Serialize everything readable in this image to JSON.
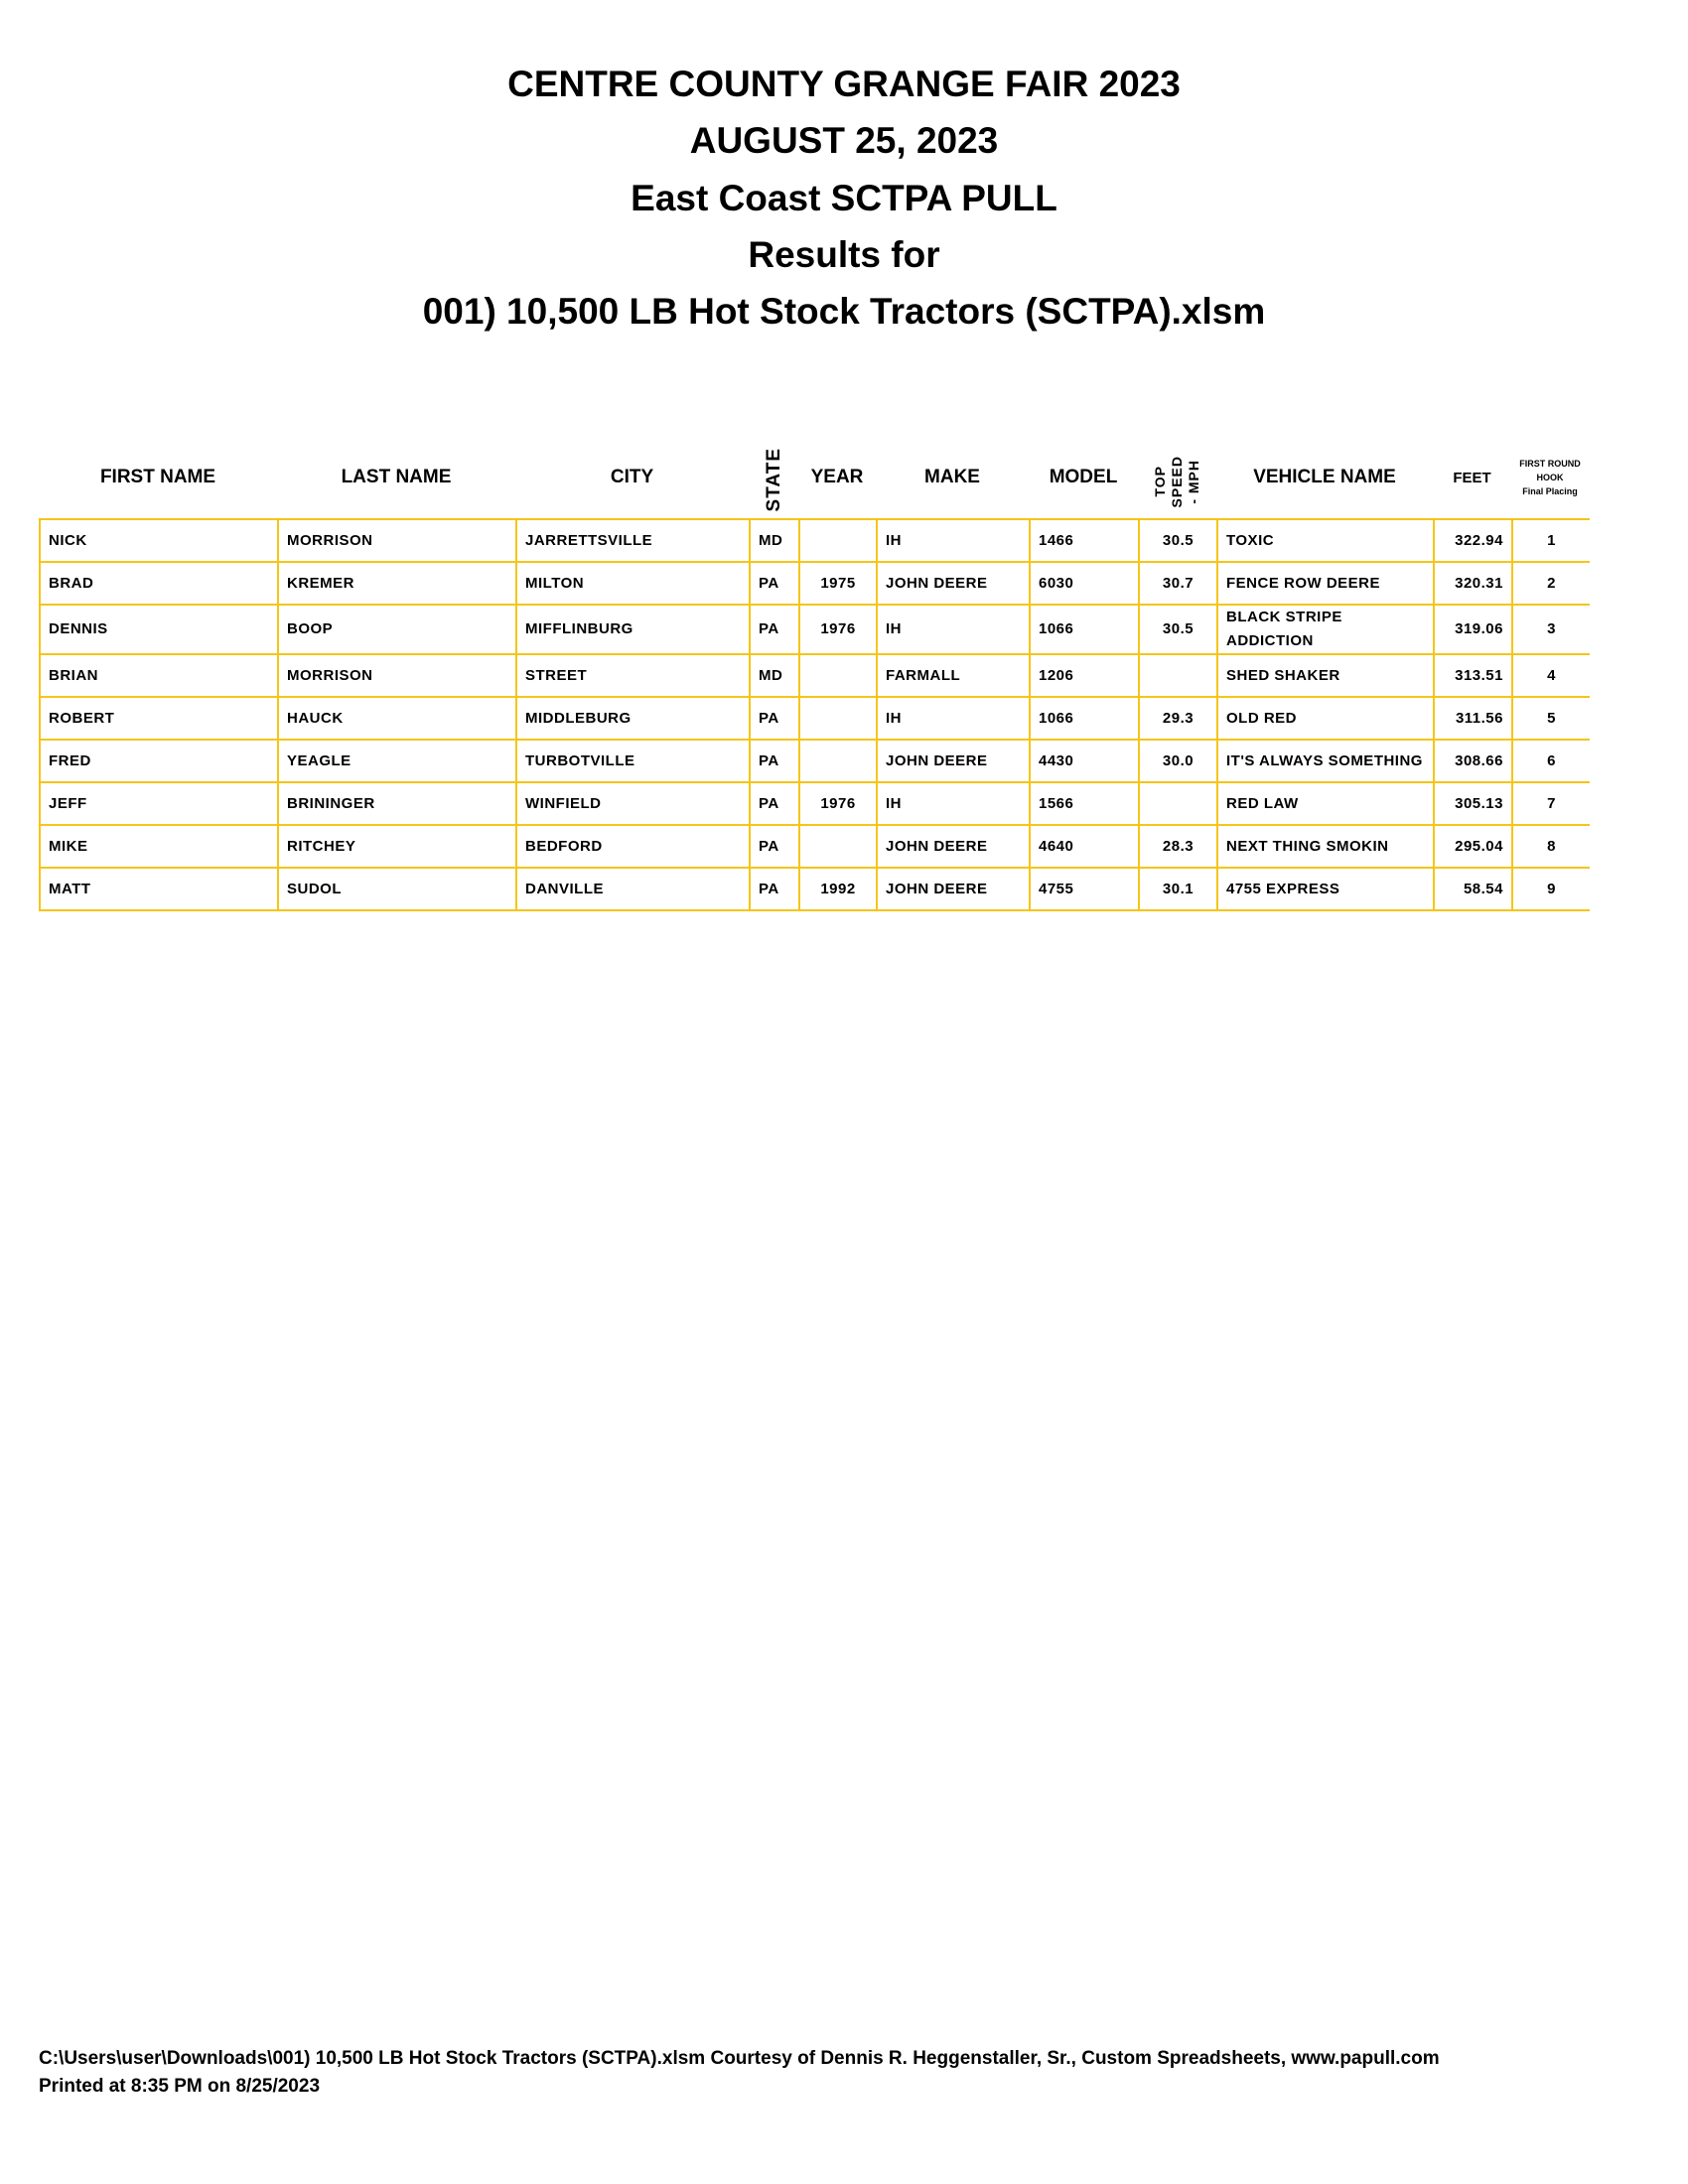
{
  "titles": [
    "CENTRE COUNTY GRANGE FAIR 2023",
    "AUGUST 25, 2023",
    "East Coast SCTPA PULL",
    "Results for",
    "001) 10,500 LB Hot Stock Tractors (SCTPA).xlsm"
  ],
  "columns": {
    "first": "FIRST NAME",
    "last": "LAST NAME",
    "city": "CITY",
    "state": "STATE",
    "year": "YEAR",
    "make": "MAKE",
    "model": "MODEL",
    "speed_1": "TOP",
    "speed_2": "SPEED",
    "speed_3": "- MPH",
    "vehicle": "VEHICLE NAME",
    "feet": "FEET",
    "place_1": "FIRST ROUND",
    "place_2": "HOOK",
    "place_3": "Final Placing"
  },
  "rows": [
    {
      "first": "NICK",
      "last": "MORRISON",
      "city": "JARRETTSVILLE",
      "state": "MD",
      "year": "",
      "make": "IH",
      "model": "1466",
      "speed": "30.5",
      "vehicle": "TOXIC",
      "feet": "322.94",
      "place": "1"
    },
    {
      "first": "BRAD",
      "last": "KREMER",
      "city": "MILTON",
      "state": "PA",
      "year": "1975",
      "make": "JOHN DEERE",
      "model": "6030",
      "speed": "30.7",
      "vehicle": "FENCE ROW DEERE",
      "feet": "320.31",
      "place": "2"
    },
    {
      "first": "DENNIS",
      "last": "BOOP",
      "city": "MIFFLINBURG",
      "state": "PA",
      "year": "1976",
      "make": "IH",
      "model": "1066",
      "speed": "30.5",
      "vehicle": "BLACK STRIPE ADDICTION",
      "feet": "319.06",
      "place": "3"
    },
    {
      "first": "BRIAN",
      "last": "MORRISON",
      "city": "STREET",
      "state": "MD",
      "year": "",
      "make": "FARMALL",
      "model": "1206",
      "speed": "",
      "vehicle": "SHED SHAKER",
      "feet": "313.51",
      "place": "4"
    },
    {
      "first": "ROBERT",
      "last": "HAUCK",
      "city": "MIDDLEBURG",
      "state": "PA",
      "year": "",
      "make": "IH",
      "model": "1066",
      "speed": "29.3",
      "vehicle": "OLD RED",
      "feet": "311.56",
      "place": "5"
    },
    {
      "first": "FRED",
      "last": "YEAGLE",
      "city": "TURBOTVILLE",
      "state": "PA",
      "year": "",
      "make": "JOHN DEERE",
      "model": "4430",
      "speed": "30.0",
      "vehicle": "IT'S ALWAYS SOMETHING",
      "feet": "308.66",
      "place": "6"
    },
    {
      "first": "JEFF",
      "last": "BRININGER",
      "city": "WINFIELD",
      "state": "PA",
      "year": "1976",
      "make": "IH",
      "model": "1566",
      "speed": "",
      "vehicle": "RED LAW",
      "feet": "305.13",
      "place": "7"
    },
    {
      "first": "MIKE",
      "last": "RITCHEY",
      "city": "BEDFORD",
      "state": "PA",
      "year": "",
      "make": "JOHN DEERE",
      "model": "4640",
      "speed": "28.3",
      "vehicle": "NEXT THING SMOKIN",
      "feet": "295.04",
      "place": "8"
    },
    {
      "first": "MATT",
      "last": "SUDOL",
      "city": "DANVILLE",
      "state": "PA",
      "year": "1992",
      "make": "JOHN DEERE",
      "model": "4755",
      "speed": "30.1",
      "vehicle": "4755 EXPRESS",
      "feet": "58.54",
      "place": "9"
    }
  ],
  "footer": {
    "line1": "C:\\Users\\user\\Downloads\\001) 10,500 LB Hot Stock Tractors (SCTPA).xlsm  Courtesy of Dennis R. Heggenstaller, Sr., Custom Spreadsheets, www.papull.com",
    "line2": "Printed at 8:35 PM on 8/25/2023"
  },
  "colors": {
    "grid": "#f5c518",
    "text": "#000000"
  }
}
